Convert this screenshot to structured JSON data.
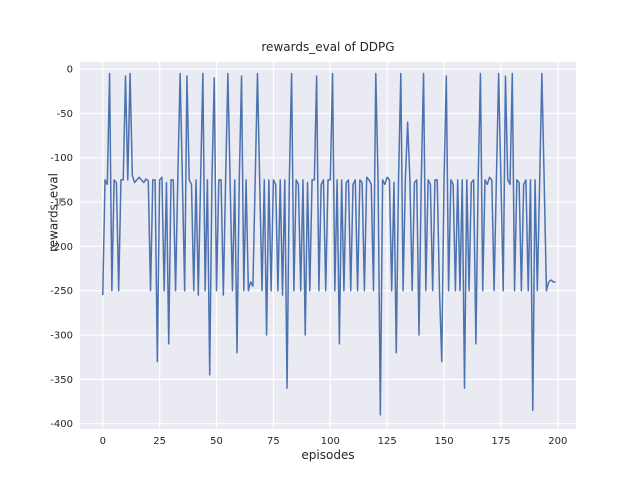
{
  "figure": {
    "background": "#ffffff",
    "axes_background": "#eaeaf2",
    "grid_color": "#ffffff",
    "line_color": "#4c72b0",
    "text_color": "#262626"
  },
  "chart_data": {
    "type": "line",
    "title": "rewards_eval of DDPG",
    "xlabel": "episodes",
    "ylabel": "rewards_eval",
    "xlim": [
      -10,
      208
    ],
    "ylim": [
      -406,
      8
    ],
    "x_ticks": [
      0,
      25,
      50,
      75,
      100,
      125,
      150,
      175,
      200
    ],
    "y_ticks": [
      0,
      -50,
      -100,
      -150,
      -200,
      -250,
      -300,
      -350,
      -400
    ],
    "grid": true,
    "legend": false,
    "x": "episodes 0-199 (implicit index)",
    "values": [
      -255,
      -125,
      -130,
      -5,
      -250,
      -125,
      -128,
      -250,
      -125,
      -125,
      -8,
      -125,
      -5,
      -120,
      -128,
      -125,
      -122,
      -125,
      -128,
      -124,
      -126,
      -250,
      -125,
      -125,
      -330,
      -125,
      -122,
      -250,
      -128,
      -310,
      -125,
      -125,
      -250,
      -122,
      -5,
      -125,
      -250,
      -8,
      -125,
      -130,
      -250,
      -125,
      -255,
      -125,
      -5,
      -250,
      -125,
      -345,
      -125,
      -10,
      -250,
      -125,
      -125,
      -255,
      -125,
      -5,
      -130,
      -250,
      -125,
      -320,
      -125,
      -8,
      -250,
      -125,
      -250,
      -240,
      -245,
      -125,
      -5,
      -130,
      -250,
      -125,
      -300,
      -125,
      -250,
      -125,
      -130,
      -250,
      -125,
      -255,
      -125,
      -360,
      -125,
      -5,
      -250,
      -125,
      -130,
      -250,
      -125,
      -300,
      -128,
      -250,
      -125,
      -125,
      -8,
      -250,
      -130,
      -125,
      -250,
      -125,
      -125,
      -5,
      -250,
      -125,
      -310,
      -125,
      -250,
      -128,
      -125,
      -250,
      -130,
      -125,
      -250,
      -125,
      -128,
      -250,
      -122,
      -125,
      -130,
      -250,
      -5,
      -125,
      -390,
      -125,
      -130,
      -122,
      -125,
      -250,
      -128,
      -320,
      -125,
      -5,
      -250,
      -125,
      -60,
      -125,
      -250,
      -128,
      -125,
      -300,
      -125,
      -5,
      -250,
      -125,
      -130,
      -250,
      -125,
      -125,
      -250,
      -330,
      -125,
      -8,
      -250,
      -125,
      -130,
      -250,
      -125,
      -250,
      -125,
      -360,
      -125,
      -250,
      -128,
      -125,
      -310,
      -125,
      -5,
      -250,
      -125,
      -130,
      -122,
      -125,
      -250,
      -125,
      -5,
      -125,
      -250,
      -8,
      -125,
      -130,
      -5,
      -250,
      -125,
      -128,
      -250,
      -130,
      -125,
      -250,
      -125,
      -385,
      -125,
      -250,
      -130,
      -5,
      -125,
      -250,
      -240,
      -238,
      -240,
      -240
    ]
  }
}
